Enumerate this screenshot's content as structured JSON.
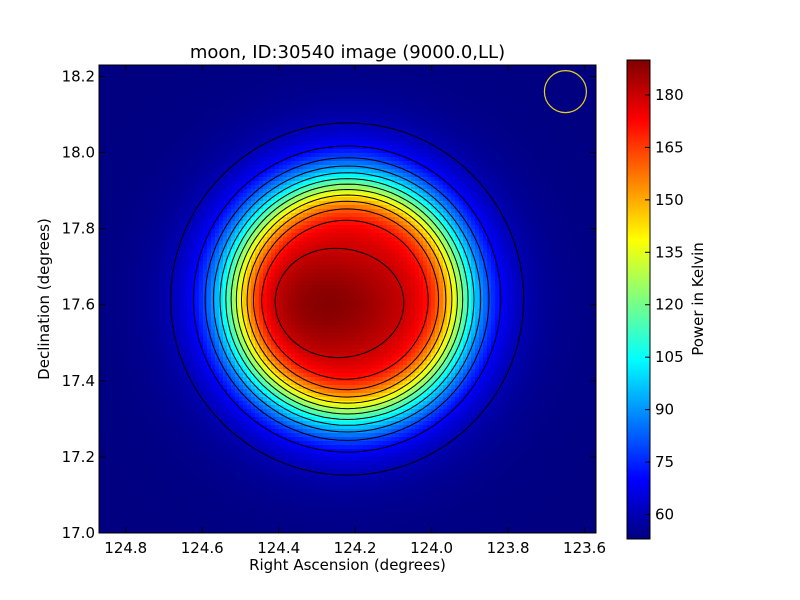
{
  "chart_data": {
    "type": "heatmap",
    "title": "moon, ID:30540 image (9000.0,LL)",
    "xlabel": "Right Ascension (degrees)",
    "ylabel": "Declination (degrees)",
    "xlim": [
      124.87,
      123.57
    ],
    "ylim": [
      17.0,
      18.23
    ],
    "xticks": [
      124.8,
      124.6,
      124.4,
      124.2,
      124.0,
      123.8,
      123.6
    ],
    "xtick_labels": [
      "124.8",
      "124.6",
      "124.4",
      "124.2",
      "124.0",
      "123.8",
      "123.6"
    ],
    "yticks": [
      17.0,
      17.2,
      17.4,
      17.6,
      17.8,
      18.0,
      18.2
    ],
    "ytick_labels": [
      "17.0",
      "17.2",
      "17.4",
      "17.6",
      "17.8",
      "18.0",
      "18.2"
    ],
    "colormap": "jet",
    "colorbar": {
      "label": "Power in Kelvin",
      "range": [
        53,
        190
      ],
      "ticks": [
        60,
        75,
        90,
        105,
        120,
        135,
        150,
        165,
        180
      ],
      "tick_labels": [
        "60",
        "75",
        "90",
        "105",
        "120",
        "135",
        "150",
        "165",
        "180"
      ]
    },
    "source": {
      "ra": 124.22,
      "dec": 17.615,
      "background": 53,
      "peak": 189,
      "peak_ra": 124.27,
      "peak_dec": 17.6
    },
    "contour_levels": [
      60,
      70,
      80,
      90,
      100,
      110,
      120,
      130,
      140,
      150,
      160,
      170,
      180
    ],
    "beam_marker": {
      "ra": 123.65,
      "dec": 18.16,
      "color": "#e6d21e"
    }
  }
}
